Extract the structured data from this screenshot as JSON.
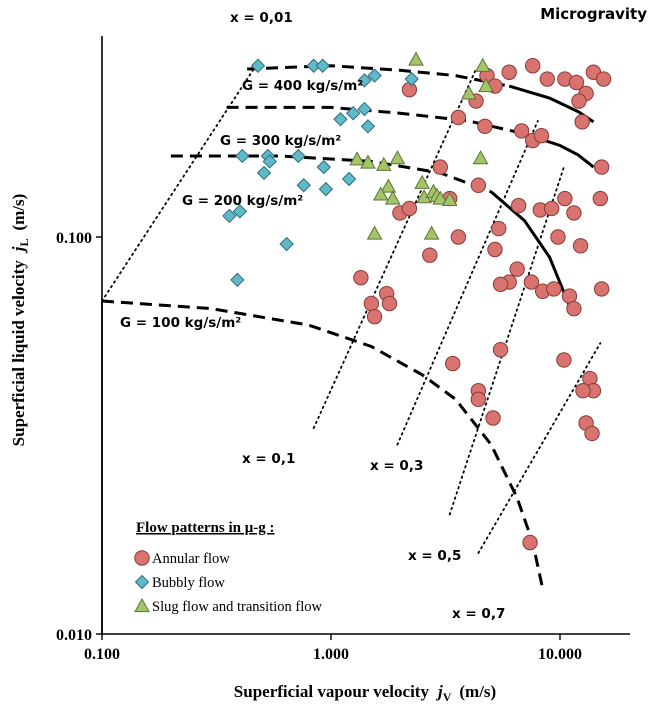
{
  "chart_data": {
    "type": "scatter",
    "title": "Microgravity",
    "xlabel": "Superficial vapour velocity",
    "xlabel_symbol": "j",
    "xlabel_sub": "V",
    "xlabel_unit": "(m/s)",
    "ylabel": "Superficial liquid velocity",
    "ylabel_symbol": "j",
    "ylabel_sub": "L",
    "ylabel_unit": "(m/s)",
    "x_scale": "log",
    "y_scale": "log",
    "xlim": [
      0.1,
      20
    ],
    "ylim": [
      0.01,
      0.3
    ],
    "x_ticks": [
      {
        "value": 0.1,
        "label": "0.100"
      },
      {
        "value": 1,
        "label": "1.000"
      },
      {
        "value": 10,
        "label": "10.000"
      }
    ],
    "y_ticks": [
      {
        "value": 0.01,
        "label": "0.010"
      },
      {
        "value": 0.1,
        "label": "0.100"
      }
    ],
    "colors": {
      "annular_fill": "#d9736f",
      "annular_stroke": "#8a3a36",
      "bubbly_fill": "#5fb9c9",
      "bubbly_stroke": "#2d6f7d",
      "slug_fill": "#a4c46a",
      "slug_stroke": "#5d7434"
    },
    "legend": {
      "title": "Flow patterns in μ-g :",
      "placement": "bottom-left",
      "entries": [
        {
          "key": "annular",
          "label": "Annular flow",
          "marker": "circle"
        },
        {
          "key": "bubbly",
          "label": "Bubbly flow",
          "marker": "diamond"
        },
        {
          "key": "slug",
          "label": "Slug flow and transition flow",
          "marker": "triangle"
        }
      ]
    },
    "series": [
      {
        "key": "annular",
        "name": "Annular flow",
        "marker": "circle",
        "points": [
          [
            7.6,
            0.27
          ],
          [
            10.5,
            0.25
          ],
          [
            14.0,
            0.26
          ],
          [
            15.5,
            0.25
          ],
          [
            11.8,
            0.245
          ],
          [
            13.0,
            0.23
          ],
          [
            12.1,
            0.22
          ],
          [
            6.0,
            0.26
          ],
          [
            8.8,
            0.25
          ],
          [
            4.8,
            0.255
          ],
          [
            2.2,
            0.235
          ],
          [
            5.2,
            0.24
          ],
          [
            3.6,
            0.2
          ],
          [
            4.3,
            0.22
          ],
          [
            4.7,
            0.19
          ],
          [
            6.8,
            0.185
          ],
          [
            7.6,
            0.175
          ],
          [
            8.3,
            0.18
          ],
          [
            15.2,
            0.15
          ],
          [
            12.5,
            0.195
          ],
          [
            3.0,
            0.15
          ],
          [
            4.4,
            0.135
          ],
          [
            5.4,
            0.105
          ],
          [
            6.6,
            0.12
          ],
          [
            8.2,
            0.117
          ],
          [
            9.2,
            0.118
          ],
          [
            9.8,
            0.1
          ],
          [
            10.5,
            0.125
          ],
          [
            11.5,
            0.115
          ],
          [
            15.0,
            0.125
          ],
          [
            3.3,
            0.125
          ],
          [
            2.0,
            0.115
          ],
          [
            2.2,
            0.118
          ],
          [
            3.6,
            0.1
          ],
          [
            2.7,
            0.09
          ],
          [
            5.2,
            0.093
          ],
          [
            6.5,
            0.083
          ],
          [
            6.0,
            0.077
          ],
          [
            5.5,
            0.076
          ],
          [
            7.5,
            0.077
          ],
          [
            8.4,
            0.073
          ],
          [
            9.4,
            0.074
          ],
          [
            11.0,
            0.071
          ],
          [
            11.5,
            0.066
          ],
          [
            15.2,
            0.074
          ],
          [
            12.3,
            0.095
          ],
          [
            1.35,
            0.079
          ],
          [
            1.75,
            0.072
          ],
          [
            1.5,
            0.068
          ],
          [
            1.55,
            0.063
          ],
          [
            1.8,
            0.068
          ],
          [
            3.4,
            0.048
          ],
          [
            5.5,
            0.052
          ],
          [
            4.4,
            0.041
          ],
          [
            4.4,
            0.039
          ],
          [
            5.1,
            0.035
          ],
          [
            10.4,
            0.049
          ],
          [
            13.5,
            0.044
          ],
          [
            14.0,
            0.041
          ],
          [
            12.6,
            0.041
          ],
          [
            13.0,
            0.034
          ],
          [
            13.8,
            0.032
          ],
          [
            7.4,
            0.017
          ]
        ]
      },
      {
        "key": "bubbly",
        "name": "Bubbly flow",
        "marker": "diamond",
        "points": [
          [
            0.48,
            0.27
          ],
          [
            0.84,
            0.27
          ],
          [
            0.92,
            0.27
          ],
          [
            1.55,
            0.255
          ],
          [
            1.4,
            0.248
          ],
          [
            2.25,
            0.25
          ],
          [
            1.25,
            0.205
          ],
          [
            1.4,
            0.21
          ],
          [
            1.1,
            0.198
          ],
          [
            1.45,
            0.19
          ],
          [
            0.41,
            0.16
          ],
          [
            0.53,
            0.16
          ],
          [
            0.72,
            0.16
          ],
          [
            0.54,
            0.155
          ],
          [
            0.51,
            0.145
          ],
          [
            0.93,
            0.15
          ],
          [
            0.76,
            0.135
          ],
          [
            1.2,
            0.14
          ],
          [
            0.95,
            0.132
          ],
          [
            0.36,
            0.113
          ],
          [
            0.4,
            0.116
          ],
          [
            0.64,
            0.096
          ],
          [
            0.39,
            0.078
          ]
        ]
      },
      {
        "key": "slug",
        "name": "Slug flow and transition flow",
        "marker": "triangle",
        "points": [
          [
            2.35,
            0.28
          ],
          [
            4.6,
            0.27
          ],
          [
            4.0,
            0.23
          ],
          [
            4.75,
            0.24
          ],
          [
            1.3,
            0.157
          ],
          [
            1.45,
            0.154
          ],
          [
            1.95,
            0.158
          ],
          [
            1.7,
            0.152
          ],
          [
            4.5,
            0.158
          ],
          [
            1.78,
            0.134
          ],
          [
            1.65,
            0.128
          ],
          [
            1.86,
            0.125
          ],
          [
            2.55,
            0.126
          ],
          [
            2.8,
            0.13
          ],
          [
            2.9,
            0.127
          ],
          [
            3.0,
            0.125
          ],
          [
            3.3,
            0.124
          ],
          [
            2.5,
            0.137
          ],
          [
            1.55,
            0.102
          ],
          [
            2.75,
            0.102
          ]
        ]
      }
    ],
    "transition_lines": [
      {
        "label": "G = 400 kg/s/m²",
        "points": [
          [
            0.43,
            0.265
          ],
          [
            1.0,
            0.27
          ],
          [
            2.0,
            0.263
          ],
          [
            3.5,
            0.255
          ],
          [
            6.0,
            0.24
          ],
          [
            9.0,
            0.224
          ],
          [
            12.0,
            0.207
          ],
          [
            14.0,
            0.195
          ]
        ]
      },
      {
        "label": "G = 300 kg/s/m²",
        "points": [
          [
            0.35,
            0.212
          ],
          [
            1.0,
            0.212
          ],
          [
            2.0,
            0.205
          ],
          [
            4.0,
            0.196
          ],
          [
            7.0,
            0.182
          ],
          [
            10.0,
            0.17
          ],
          [
            12.0,
            0.161
          ],
          [
            14.0,
            0.15
          ]
        ]
      },
      {
        "label": "G = 200 kg/s/m²",
        "points": [
          [
            0.2,
            0.16
          ],
          [
            0.6,
            0.16
          ],
          [
            1.5,
            0.155
          ],
          [
            3.0,
            0.145
          ],
          [
            5.0,
            0.13
          ],
          [
            7.0,
            0.11
          ],
          [
            9.0,
            0.089
          ],
          [
            11.0,
            0.067
          ]
        ]
      },
      {
        "label": "G = 100 kg/s/m²",
        "points": [
          [
            0.1,
            0.069
          ],
          [
            0.3,
            0.066
          ],
          [
            0.8,
            0.06
          ],
          [
            1.5,
            0.053
          ],
          [
            2.5,
            0.045
          ],
          [
            3.5,
            0.039
          ],
          [
            5.0,
            0.03
          ],
          [
            6.5,
            0.022
          ],
          [
            7.6,
            0.017
          ],
          [
            8.4,
            0.013
          ]
        ]
      }
    ],
    "quality_lines": [
      {
        "label": "x = 0,01",
        "points": [
          [
            0.1,
            0.069
          ],
          [
            0.47,
            0.27
          ]
        ]
      },
      {
        "label": "x = 0,1",
        "points": [
          [
            0.84,
            0.033
          ],
          [
            4.3,
            0.265
          ]
        ]
      },
      {
        "label": "x = 0,3",
        "points": [
          [
            1.95,
            0.03
          ],
          [
            8.0,
            0.196
          ]
        ]
      },
      {
        "label": "x = 0,5",
        "points": [
          [
            3.3,
            0.02
          ],
          [
            10.4,
            0.15
          ]
        ]
      },
      {
        "label": "x = 0,7",
        "points": [
          [
            4.4,
            0.016
          ],
          [
            15.0,
            0.054
          ]
        ]
      }
    ]
  }
}
